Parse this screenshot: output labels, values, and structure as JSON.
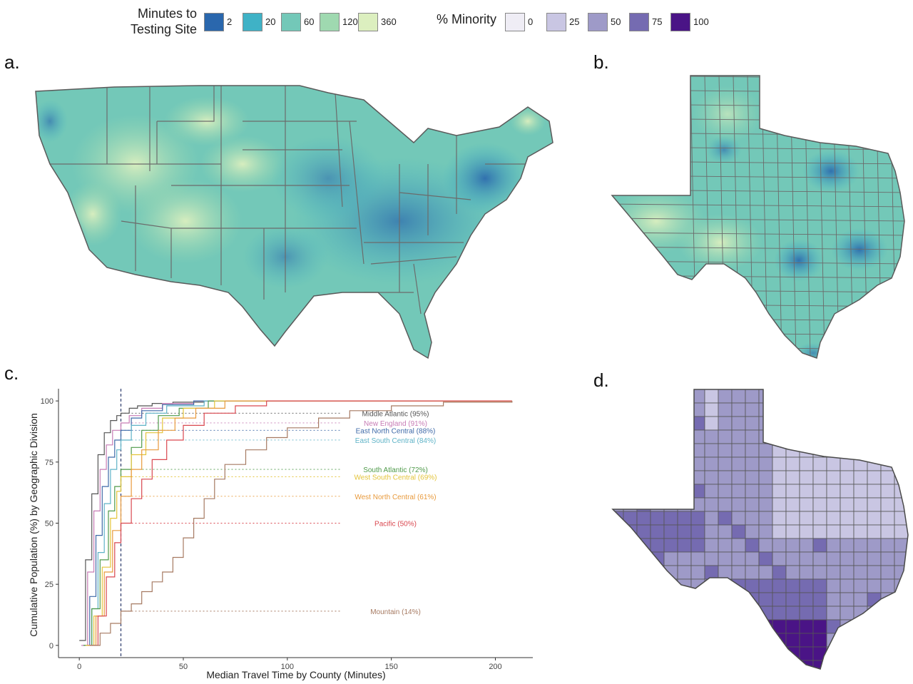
{
  "legend_time": {
    "title_line1": "Minutes to",
    "title_line2": "Testing Site",
    "items": [
      {
        "label": "2",
        "color": "#2a67ad"
      },
      {
        "label": "20",
        "color": "#3fb2c6"
      },
      {
        "label": "60",
        "color": "#73c8b8"
      },
      {
        "label": "120",
        "color": "#9fd9b0"
      },
      {
        "label": "360",
        "color": "#dcefbf"
      }
    ]
  },
  "legend_minority": {
    "title": "% Minority",
    "items": [
      {
        "label": "0",
        "color": "#efedf5"
      },
      {
        "label": "25",
        "color": "#c9c6e3"
      },
      {
        "label": "50",
        "color": "#9e9ac8"
      },
      {
        "label": "75",
        "color": "#756bb1"
      },
      {
        "label": "100",
        "color": "#4a1486"
      }
    ]
  },
  "panels": {
    "a": "a.",
    "b": "b.",
    "c": "c.",
    "d": "d."
  },
  "maps": {
    "a_region": "Contiguous United States",
    "b_region": "Texas",
    "d_region": "Texas"
  },
  "chart_data": {
    "type": "line",
    "xlabel": "Median Travel Time by County (Minutes)",
    "ylabel": "Cumulative Population (%) by Geographic Division",
    "xlim": [
      -10,
      218
    ],
    "ylim": [
      -5,
      105
    ],
    "xticks": [
      0,
      50,
      100,
      150,
      200
    ],
    "yticks": [
      0,
      25,
      50,
      75,
      100
    ],
    "reference_line_x": 20,
    "grid": false,
    "series": [
      {
        "name": "Middle Atlantic",
        "label": "Middle Atlantic (95%)",
        "value_at_ref": 95,
        "color": "#555555",
        "x": [
          0,
          3,
          6,
          9,
          12,
          15,
          18,
          20,
          24,
          28,
          35,
          45,
          60,
          208
        ],
        "y": [
          2,
          35,
          62,
          78,
          87,
          92,
          94,
          95,
          97,
          98,
          99,
          99.5,
          100,
          100
        ]
      },
      {
        "name": "New England",
        "label": "New England (91%)",
        "value_at_ref": 91,
        "color": "#c77cb5",
        "x": [
          1,
          4,
          7,
          10,
          13,
          16,
          20,
          24,
          30,
          40,
          55,
          208
        ],
        "y": [
          0,
          30,
          55,
          72,
          82,
          88,
          91,
          94,
          97,
          99,
          100,
          100
        ]
      },
      {
        "name": "East North Central",
        "label": "East North Central (88%)",
        "value_at_ref": 88,
        "color": "#3f6aa8",
        "x": [
          2,
          5,
          8,
          11,
          14,
          17,
          20,
          25,
          30,
          40,
          55,
          208
        ],
        "y": [
          0,
          20,
          45,
          65,
          77,
          84,
          88,
          93,
          96,
          98.5,
          100,
          100
        ]
      },
      {
        "name": "East South Central",
        "label": "East South Central (84%)",
        "value_at_ref": 84,
        "color": "#5fb3c7",
        "x": [
          3,
          6,
          9,
          12,
          15,
          18,
          20,
          25,
          32,
          42,
          60,
          208
        ],
        "y": [
          0,
          15,
          38,
          58,
          72,
          80,
          84,
          90,
          95,
          98,
          100,
          100
        ]
      },
      {
        "name": "South Atlantic",
        "label": "South Atlantic (72%)",
        "value_at_ref": 72,
        "color": "#4f9a4a",
        "x": [
          2,
          6,
          10,
          14,
          17,
          20,
          25,
          30,
          38,
          48,
          62,
          208
        ],
        "y": [
          0,
          15,
          35,
          55,
          65,
          72,
          81,
          88,
          94,
          97,
          100,
          100
        ]
      },
      {
        "name": "West South Central",
        "label": "West South Central (69%)",
        "value_at_ref": 69,
        "color": "#e3c43a",
        "x": [
          3,
          7,
          11,
          15,
          18,
          20,
          25,
          32,
          40,
          50,
          65,
          208
        ],
        "y": [
          0,
          12,
          32,
          52,
          63,
          69,
          78,
          87,
          93,
          97,
          100,
          100
        ]
      },
      {
        "name": "West North Central",
        "label": "West North Central (61%)",
        "value_at_ref": 61,
        "color": "#e89a3c",
        "x": [
          4,
          8,
          12,
          16,
          20,
          25,
          30,
          38,
          46,
          56,
          70,
          208
        ],
        "y": [
          0,
          12,
          30,
          47,
          61,
          72,
          80,
          88,
          93,
          97,
          100,
          100
        ]
      },
      {
        "name": "Pacific",
        "label": "Pacific (50%)",
        "value_at_ref": 50,
        "color": "#d9474f",
        "x": [
          5,
          9,
          13,
          17,
          20,
          25,
          30,
          35,
          42,
          50,
          60,
          75,
          90,
          208
        ],
        "y": [
          0,
          12,
          28,
          42,
          50,
          60,
          68,
          76,
          84,
          90,
          95,
          98,
          100,
          100
        ]
      },
      {
        "name": "Mountain",
        "label": "Mountain (14%)",
        "value_at_ref": 14,
        "color": "#a67a62",
        "x": [
          5,
          10,
          15,
          20,
          25,
          30,
          35,
          40,
          45,
          50,
          55,
          60,
          65,
          70,
          80,
          90,
          100,
          115,
          130,
          150,
          175,
          208
        ],
        "y": [
          0,
          5,
          9,
          14,
          17,
          22,
          26,
          30,
          36,
          44,
          52,
          60,
          68,
          74,
          80,
          85,
          89,
          93,
          96,
          98,
          99.5,
          100
        ]
      }
    ]
  }
}
